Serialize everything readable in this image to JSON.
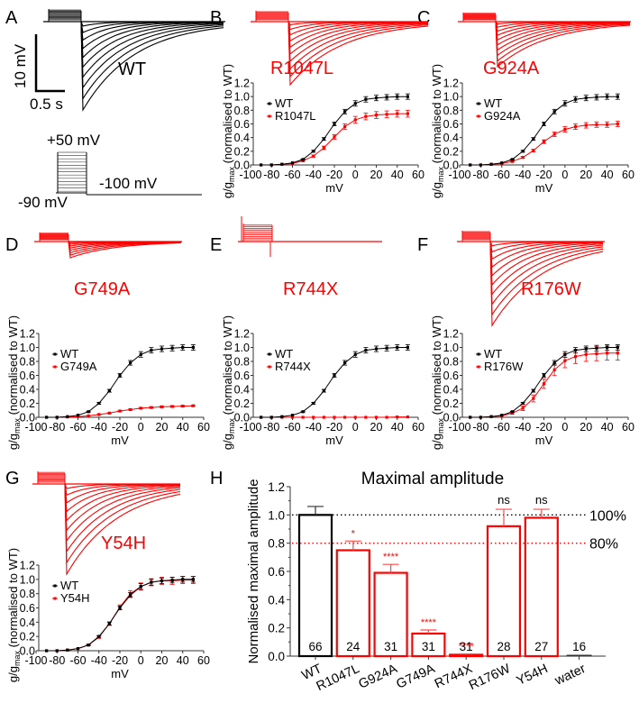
{
  "colors": {
    "wt": "#000000",
    "mutant": "#ff0000",
    "axis": "#333333"
  },
  "panel_a": {
    "letter": "A",
    "trace_label": "WT",
    "scale_y": "10 mV",
    "scale_x": "0.5 s",
    "protocol": {
      "top": "+50 mV",
      "hold": "-90 mV",
      "tail": "-100 mV"
    }
  },
  "panels": [
    {
      "letter": "B",
      "variant": "R1047L"
    },
    {
      "letter": "C",
      "variant": "G924A"
    },
    {
      "letter": "D",
      "variant": "G749A"
    },
    {
      "letter": "E",
      "variant": "R744X"
    },
    {
      "letter": "F",
      "variant": "R176W"
    },
    {
      "letter": "G",
      "variant": "Y54H"
    },
    {
      "letter": "H",
      "variant": ""
    }
  ],
  "chart_data": [
    {
      "id": "B",
      "type": "line",
      "title": "",
      "xlabel": "mV",
      "ylabel": "g/gmax (normalised to WT)",
      "xlim": [
        -100,
        60
      ],
      "ylim": [
        0,
        1.2
      ],
      "xticks": [
        "-100",
        "-80",
        "-60",
        "-40",
        "-20",
        "0",
        "20",
        "40",
        "60"
      ],
      "yticks": [
        "0.0",
        "0.2",
        "0.4",
        "0.6",
        "0.8",
        "1.0",
        "1.2"
      ],
      "legend": "upper-left",
      "x": [
        -90,
        -80,
        -70,
        -60,
        -50,
        -40,
        -30,
        -20,
        -10,
        0,
        10,
        20,
        30,
        40,
        50
      ],
      "series": [
        {
          "name": "WT",
          "color": "#000000",
          "values": [
            0,
            0,
            0.01,
            0.03,
            0.08,
            0.2,
            0.38,
            0.6,
            0.78,
            0.9,
            0.96,
            0.98,
            0.99,
            1.0,
            1.0
          ],
          "err": 0.04
        },
        {
          "name": "R1047L",
          "color": "#ff0000",
          "values": [
            0,
            0,
            0.01,
            0.02,
            0.06,
            0.13,
            0.25,
            0.41,
            0.56,
            0.66,
            0.71,
            0.73,
            0.74,
            0.75,
            0.75
          ],
          "err": 0.05
        }
      ]
    },
    {
      "id": "C",
      "type": "line",
      "xlabel": "mV",
      "ylabel": "g/gmax (normalised to WT)",
      "xlim": [
        -100,
        60
      ],
      "ylim": [
        0,
        1.2
      ],
      "xticks": [
        "-100",
        "-80",
        "-60",
        "-40",
        "-20",
        "0",
        "20",
        "40",
        "60"
      ],
      "yticks": [
        "0.0",
        "0.2",
        "0.4",
        "0.6",
        "0.8",
        "1.0",
        "1.2"
      ],
      "legend": "upper-left",
      "x": [
        -90,
        -80,
        -70,
        -60,
        -50,
        -40,
        -30,
        -20,
        -10,
        0,
        10,
        20,
        30,
        40,
        50
      ],
      "series": [
        {
          "name": "WT",
          "color": "#000000",
          "values": [
            0,
            0,
            0.01,
            0.03,
            0.08,
            0.2,
            0.38,
            0.6,
            0.78,
            0.9,
            0.96,
            0.98,
            0.99,
            1.0,
            1.0
          ],
          "err": 0.04
        },
        {
          "name": "G924A",
          "color": "#ff0000",
          "values": [
            0,
            0,
            0.01,
            0.02,
            0.05,
            0.11,
            0.21,
            0.34,
            0.45,
            0.52,
            0.56,
            0.58,
            0.59,
            0.59,
            0.6
          ],
          "err": 0.04
        }
      ]
    },
    {
      "id": "D",
      "type": "line",
      "xlabel": "mV",
      "ylabel": "g/gmax (normalised to WT)",
      "xlim": [
        -100,
        60
      ],
      "ylim": [
        0,
        1.2
      ],
      "xticks": [
        "-100",
        "-80",
        "-60",
        "-40",
        "-20",
        "0",
        "20",
        "40",
        "60"
      ],
      "yticks": [
        "0.0",
        "0.2",
        "0.4",
        "0.6",
        "0.8",
        "1.0",
        "1.2"
      ],
      "legend": "upper-left",
      "x": [
        -90,
        -80,
        -70,
        -60,
        -50,
        -40,
        -30,
        -20,
        -10,
        0,
        10,
        20,
        30,
        40,
        50
      ],
      "series": [
        {
          "name": "WT",
          "color": "#000000",
          "values": [
            0,
            0,
            0.01,
            0.03,
            0.08,
            0.2,
            0.38,
            0.6,
            0.78,
            0.9,
            0.96,
            0.98,
            0.99,
            1.0,
            1.0
          ],
          "err": 0.04
        },
        {
          "name": "G749A",
          "color": "#ff0000",
          "values": [
            0,
            0,
            0.005,
            0.01,
            0.02,
            0.04,
            0.06,
            0.09,
            0.11,
            0.13,
            0.14,
            0.15,
            0.155,
            0.16,
            0.165
          ],
          "err": 0.01
        }
      ]
    },
    {
      "id": "E",
      "type": "line",
      "xlabel": "mV",
      "ylabel": "g/gmax (normalised to WT)",
      "xlim": [
        -100,
        60
      ],
      "ylim": [
        0,
        1.2
      ],
      "xticks": [
        "-100",
        "-80",
        "-60",
        "-40",
        "-20",
        "0",
        "20",
        "40",
        "60"
      ],
      "yticks": [
        "0.0",
        "0.2",
        "0.4",
        "0.6",
        "0.8",
        "1.0",
        "1.2"
      ],
      "legend": "upper-left",
      "x": [
        -90,
        -80,
        -70,
        -60,
        -50,
        -40,
        -30,
        -20,
        -10,
        0,
        10,
        20,
        30,
        40,
        50
      ],
      "series": [
        {
          "name": "WT",
          "color": "#000000",
          "values": [
            0,
            0,
            0.01,
            0.03,
            0.08,
            0.2,
            0.38,
            0.6,
            0.78,
            0.9,
            0.96,
            0.98,
            0.99,
            1.0,
            1.0
          ],
          "err": 0.04
        },
        {
          "name": "R744X",
          "color": "#ff0000",
          "values": [
            0,
            0,
            0,
            0,
            0,
            0,
            0,
            0,
            0,
            0,
            0,
            0,
            0,
            0.005,
            0.005
          ],
          "err": 0
        }
      ]
    },
    {
      "id": "F",
      "type": "line",
      "xlabel": "mV",
      "ylabel": "g/gmax (normalised to WT)",
      "xlim": [
        -100,
        60
      ],
      "ylim": [
        0,
        1.2
      ],
      "xticks": [
        "-100",
        "-80",
        "-60",
        "-40",
        "-20",
        "0",
        "20",
        "40",
        "60"
      ],
      "yticks": [
        "0.0",
        "0.2",
        "0.4",
        "0.6",
        "0.8",
        "1.0",
        "1.2"
      ],
      "legend": "upper-left",
      "x": [
        -90,
        -80,
        -70,
        -60,
        -50,
        -40,
        -30,
        -20,
        -10,
        0,
        10,
        20,
        30,
        40,
        50
      ],
      "series": [
        {
          "name": "WT",
          "color": "#000000",
          "values": [
            0,
            0,
            0.01,
            0.03,
            0.08,
            0.2,
            0.38,
            0.6,
            0.78,
            0.9,
            0.96,
            0.98,
            0.99,
            1.0,
            1.0
          ],
          "err": 0.04
        },
        {
          "name": "R176W",
          "color": "#ff0000",
          "values": [
            0,
            0,
            0.01,
            0.02,
            0.06,
            0.13,
            0.27,
            0.48,
            0.68,
            0.81,
            0.87,
            0.9,
            0.91,
            0.92,
            0.92
          ],
          "err": 0.1
        }
      ]
    },
    {
      "id": "G",
      "type": "line",
      "xlabel": "mV",
      "ylabel": "g/gmax (normalised to WT)",
      "xlim": [
        -100,
        60
      ],
      "ylim": [
        0,
        1.2
      ],
      "xticks": [
        "-100",
        "-80",
        "-60",
        "-40",
        "-20",
        "0",
        "20",
        "40",
        "60"
      ],
      "yticks": [
        "0.0",
        "0.2",
        "0.4",
        "0.6",
        "0.8",
        "1.0",
        "1.2"
      ],
      "legend": "upper-left",
      "x": [
        -90,
        -80,
        -70,
        -60,
        -50,
        -40,
        -30,
        -20,
        -10,
        0,
        10,
        20,
        30,
        40,
        50
      ],
      "series": [
        {
          "name": "WT",
          "color": "#000000",
          "values": [
            0,
            0,
            0.01,
            0.03,
            0.08,
            0.2,
            0.38,
            0.6,
            0.78,
            0.9,
            0.96,
            0.98,
            0.99,
            1.0,
            1.0
          ],
          "err": 0.04
        },
        {
          "name": "Y54H",
          "color": "#ff0000",
          "values": [
            0,
            0,
            0.01,
            0.03,
            0.08,
            0.19,
            0.38,
            0.61,
            0.8,
            0.9,
            0.96,
            0.98,
            0.98,
            0.99,
            0.99
          ],
          "err": 0.05
        }
      ]
    },
    {
      "id": "H",
      "type": "bar",
      "title": "Maximal amplitude",
      "xlabel": "",
      "ylabel": "Normalised maximal amplitude",
      "ylim": [
        0,
        1.2
      ],
      "yticks": [
        "0.0",
        "0.2",
        "0.4",
        "0.6",
        "0.8",
        "1.0",
        "1.2"
      ],
      "categories": [
        "WT",
        "R1047L",
        "G924A",
        "G749A",
        "R744X",
        "R176W",
        "Y54H",
        "water"
      ],
      "values": [
        1.0,
        0.75,
        0.59,
        0.16,
        0.01,
        0.92,
        0.98,
        0.0
      ],
      "errors": [
        0.06,
        0.065,
        0.06,
        0.025,
        0.005,
        0.12,
        0.06,
        0.0
      ],
      "n": [
        "66",
        "24",
        "31",
        "31",
        "31",
        "28",
        "27",
        "16"
      ],
      "significance": [
        "",
        "*",
        "****",
        "****",
        "****",
        "ns",
        "ns",
        ""
      ],
      "bar_colors": [
        "#000000",
        "#ff0000",
        "#ff0000",
        "#ff0000",
        "#ff0000",
        "#ff0000",
        "#ff0000",
        "#000000"
      ],
      "reference_lines": [
        {
          "value": 1.0,
          "label": "100%",
          "color": "#000000",
          "style": "dotted"
        },
        {
          "value": 0.8,
          "label": "80%",
          "color": "#ff0000",
          "style": "dotted"
        }
      ]
    }
  ]
}
